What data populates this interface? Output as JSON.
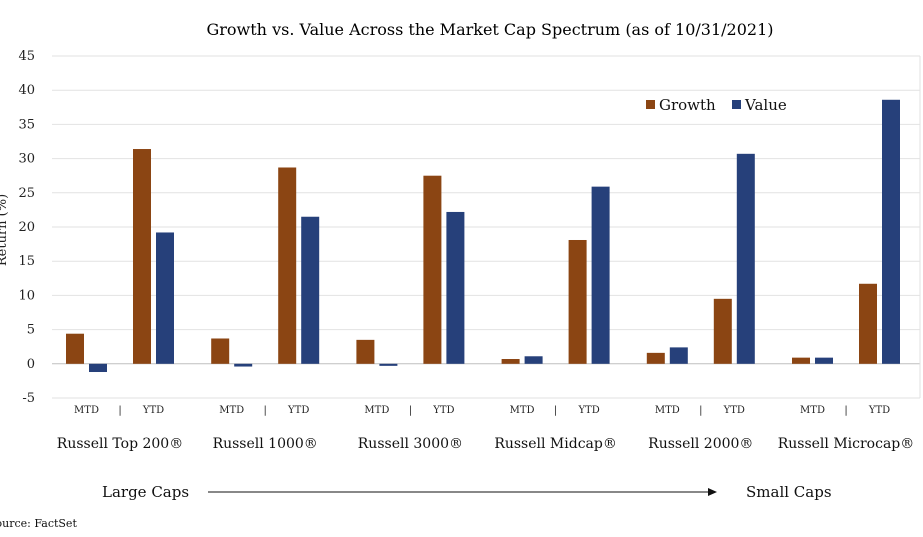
{
  "chart_data": {
    "type": "bar",
    "title": "Growth vs. Value Across the Market Cap Spectrum (as of 10/31/2021)",
    "ylabel": "Return (%)",
    "xlabel": "",
    "ylim": [
      -5,
      45
    ],
    "yticks": [
      -5,
      0,
      5,
      10,
      15,
      20,
      25,
      30,
      35,
      40,
      45
    ],
    "grid": true,
    "legend_position": "top-right",
    "sub_label": "MTD   |   YTD",
    "categories": [
      "Russell Top 200®",
      "Russell 1000®",
      "Russell 3000®",
      "Russell Midcap®",
      "Russell 2000®",
      "Russell Microcap®"
    ],
    "periods": [
      "MTD",
      "YTD"
    ],
    "series": [
      {
        "name": "Growth",
        "color": "#8B4513",
        "mtd": [
          4.4,
          3.7,
          3.5,
          0.7,
          1.6,
          0.9
        ],
        "ytd": [
          31.4,
          28.7,
          27.5,
          18.1,
          9.5,
          11.7
        ]
      },
      {
        "name": "Value",
        "color": "#26407A",
        "mtd": [
          -1.2,
          -0.4,
          -0.3,
          1.1,
          2.4,
          0.9
        ],
        "ytd": [
          19.2,
          21.5,
          22.2,
          25.9,
          30.7,
          38.6
        ]
      }
    ],
    "annotations": {
      "left_caps": "Large Caps",
      "right_caps": "Small Caps",
      "source": "Source: FactSet"
    }
  }
}
